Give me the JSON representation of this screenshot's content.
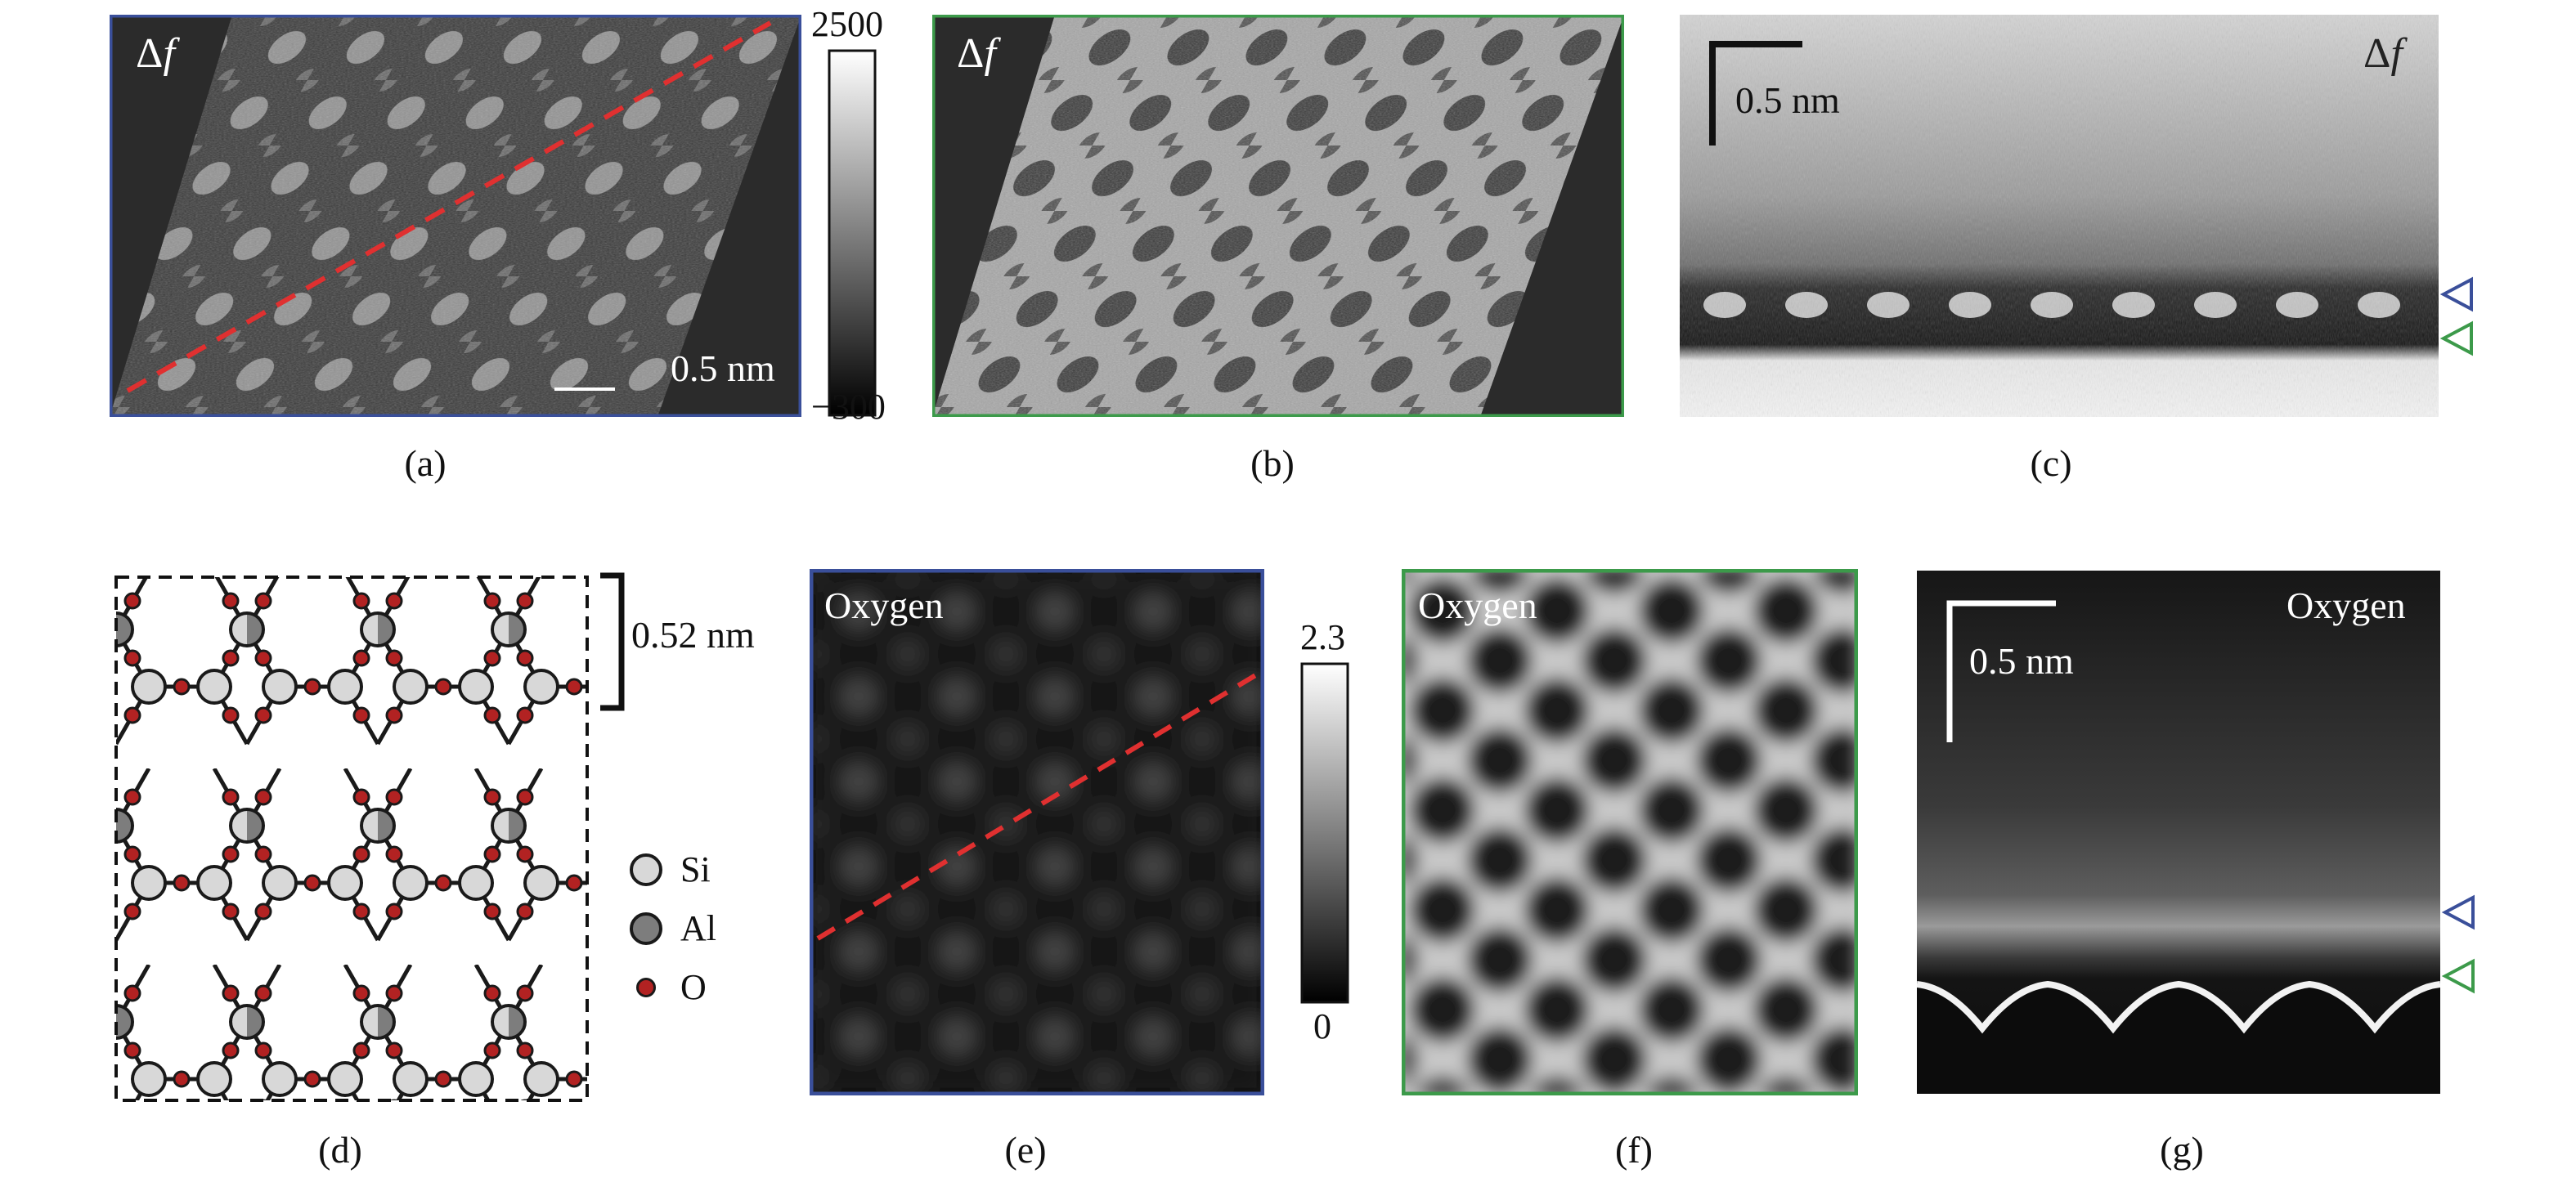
{
  "panels": {
    "a": {
      "caption": "(a)",
      "label_sym": "Δ",
      "label_var": "f",
      "scale_bar": "0.5 nm"
    },
    "b": {
      "caption": "(b)",
      "label_sym": "Δ",
      "label_var": "f"
    },
    "c": {
      "caption": "(c)",
      "label_sym": "Δ",
      "label_var": "f",
      "scale_bar": "0.5 nm"
    },
    "d": {
      "caption": "(d)",
      "spacing_label": "0.52 nm"
    },
    "e": {
      "caption": "(e)",
      "label": "Oxygen"
    },
    "f": {
      "caption": "(f)",
      "label": "Oxygen"
    },
    "g": {
      "caption": "(g)",
      "label": "Oxygen",
      "scale_bar": "0.5 nm"
    }
  },
  "colorbar_top": {
    "max": "2500",
    "min": "−300"
  },
  "colorbar_bottom": {
    "max": "2.3",
    "min": "0"
  },
  "legend": [
    {
      "label": "Si",
      "color": "#d8d8d8"
    },
    {
      "label": "Al",
      "color": "#7d7d7d"
    },
    {
      "label": "O",
      "color": "#b22222"
    }
  ],
  "colors": {
    "frame_blue": "#3a4f9a",
    "frame_green": "#3c9a4a",
    "dashed_red": "#e03030"
  }
}
